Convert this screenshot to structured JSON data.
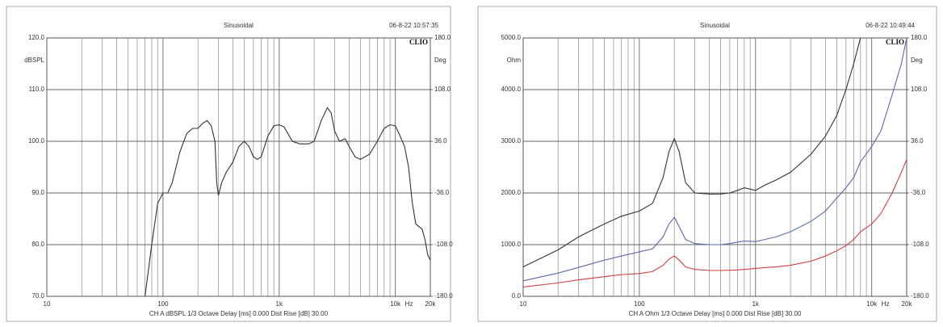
{
  "chart_data": [
    {
      "type": "line",
      "title": "Sinusoidal",
      "timestamp": "06-8-22 10:57:35",
      "brand": "CLIO",
      "ylabel": "dBSPL",
      "y2label": "Deg",
      "x_unit": "Hz",
      "footer": "CH A   dBSPL   1/3 Octave   Delay [ms] 0.000    Dist Rise [dB] 30.00",
      "xscale": "log",
      "grid": true,
      "color": "#333333",
      "xlim": [
        10,
        20000
      ],
      "xticks": [
        10,
        100,
        {
          "value": 1000,
          "label": "1k"
        },
        {
          "value": 10000,
          "label": "10k"
        },
        {
          "value": 20000,
          "label": "20k"
        }
      ],
      "ylim": [
        70,
        120
      ],
      "yticks": [
        {
          "value": 70,
          "label": "70.0"
        },
        {
          "value": 80,
          "label": "80.0"
        },
        {
          "value": 90,
          "label": "90.0"
        },
        {
          "value": 100,
          "label": "100.0"
        },
        {
          "value": 110,
          "label": "110.0"
        },
        {
          "value": 120,
          "label": "120.0"
        }
      ],
      "y2lim": [
        -180,
        180
      ],
      "y2ticks": [
        {
          "value": -180,
          "label": "-180.0"
        },
        {
          "value": -108,
          "label": "-108.0"
        },
        {
          "value": -36,
          "label": "-36.0"
        },
        {
          "value": 36,
          "label": "36.0"
        },
        {
          "value": 108,
          "label": "108.0"
        },
        {
          "value": 180,
          "label": "180.0"
        }
      ],
      "x": [
        70,
        80,
        90,
        100,
        110,
        120,
        140,
        160,
        180,
        200,
        220,
        240,
        260,
        280,
        290,
        300,
        320,
        350,
        400,
        450,
        500,
        550,
        600,
        650,
        700,
        800,
        900,
        1000,
        1100,
        1300,
        1500,
        1800,
        2000,
        2300,
        2600,
        2800,
        3000,
        3300,
        3700,
        4000,
        4500,
        5000,
        6000,
        7000,
        8000,
        9000,
        10000,
        11000,
        12000,
        13000,
        14000,
        15000,
        17000,
        18000,
        19000,
        20000
      ],
      "values": [
        70,
        80,
        88,
        90,
        90,
        92,
        98,
        101.5,
        102.5,
        102.5,
        103.5,
        104,
        103,
        100,
        92,
        89.5,
        92,
        94,
        96,
        99,
        100,
        99,
        97,
        96.5,
        97,
        101,
        103,
        103.2,
        102.8,
        100,
        99.5,
        99.5,
        100,
        104,
        106.5,
        105.5,
        102,
        100,
        100.5,
        99,
        97,
        96.5,
        97.5,
        100,
        102.5,
        103.2,
        103,
        101,
        99,
        95,
        88,
        84,
        83,
        81,
        78,
        77
      ]
    },
    {
      "type": "line",
      "title": "Sinusoidal",
      "timestamp": "06-8-22 10:49:44",
      "brand": "CLIO",
      "ylabel": "Ohm",
      "y2label": "Deg",
      "x_unit": "Hz",
      "footer": "CH A   Ohm   1/3 Octave   Delay [ms] 0.000    Dist Rise [dB] 30.00",
      "xscale": "log",
      "grid": true,
      "xlim": [
        10,
        20000
      ],
      "xticks": [
        10,
        100,
        {
          "value": 1000,
          "label": "1k"
        },
        {
          "value": 10000,
          "label": "10k"
        },
        {
          "value": 20000,
          "label": "20k"
        }
      ],
      "ylim": [
        0,
        5000
      ],
      "yticks": [
        {
          "value": 0,
          "label": "0.0"
        },
        {
          "value": 1000,
          "label": "1000.0"
        },
        {
          "value": 2000,
          "label": "2000.0"
        },
        {
          "value": 3000,
          "label": "3000.0"
        },
        {
          "value": 4000,
          "label": "4000.0"
        },
        {
          "value": 5000,
          "label": "5000.0"
        }
      ],
      "y2lim": [
        -180,
        180
      ],
      "y2ticks": [
        {
          "value": -180,
          "label": "-180.0"
        },
        {
          "value": -108,
          "label": "-108.0"
        },
        {
          "value": -36,
          "label": "-36.0"
        },
        {
          "value": 36,
          "label": "36.0"
        },
        {
          "value": 108,
          "label": "108.0"
        },
        {
          "value": 180,
          "label": "180.0"
        }
      ],
      "x": [
        10,
        20,
        30,
        50,
        70,
        100,
        130,
        160,
        180,
        200,
        220,
        250,
        300,
        400,
        500,
        600,
        700,
        800,
        1000,
        1200,
        1500,
        2000,
        3000,
        4000,
        5000,
        6000,
        7000,
        8000,
        10000,
        12000,
        15000,
        18000,
        20000
      ],
      "series": [
        {
          "color": "#333333",
          "values": [
            570,
            900,
            1150,
            1400,
            1550,
            1650,
            1800,
            2300,
            2800,
            3050,
            2800,
            2200,
            2000,
            1980,
            1980,
            2000,
            2050,
            2100,
            2050,
            2150,
            2250,
            2400,
            2750,
            3100,
            3500,
            4000,
            4500,
            5000,
            null,
            null,
            null,
            null,
            null
          ]
        },
        {
          "color": "#5a6aa8",
          "values": [
            300,
            450,
            560,
            700,
            780,
            860,
            920,
            1150,
            1400,
            1530,
            1350,
            1100,
            1020,
            1000,
            1000,
            1020,
            1050,
            1070,
            1060,
            1100,
            1150,
            1250,
            1450,
            1650,
            1900,
            2100,
            2300,
            2600,
            2900,
            3200,
            3900,
            4500,
            5000
          ]
        },
        {
          "color": "#d04040",
          "values": [
            180,
            260,
            320,
            380,
            420,
            440,
            480,
            600,
            720,
            780,
            700,
            570,
            520,
            500,
            500,
            505,
            510,
            520,
            540,
            555,
            570,
            600,
            680,
            780,
            880,
            980,
            1100,
            1250,
            1400,
            1600,
            2000,
            2400,
            2650
          ]
        }
      ]
    }
  ]
}
